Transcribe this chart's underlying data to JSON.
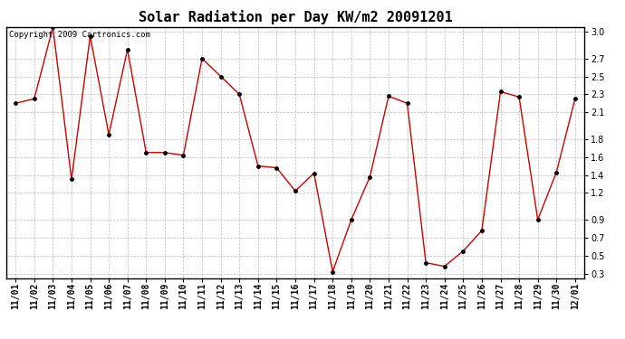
{
  "title": "Solar Radiation per Day KW/m2 20091201",
  "copyright_text": "Copyright 2009 Cartronics.com",
  "x_labels": [
    "11/01",
    "11/02",
    "11/03",
    "11/04",
    "11/05",
    "11/06",
    "11/07",
    "11/08",
    "11/09",
    "11/10",
    "11/11",
    "11/12",
    "11/13",
    "11/14",
    "11/15",
    "11/16",
    "11/17",
    "11/18",
    "11/19",
    "11/20",
    "11/21",
    "11/22",
    "11/23",
    "11/24",
    "11/25",
    "11/26",
    "11/27",
    "11/28",
    "11/29",
    "11/30",
    "12/01"
  ],
  "y_values": [
    2.2,
    2.25,
    3.05,
    1.35,
    2.95,
    1.85,
    2.8,
    1.65,
    1.65,
    1.62,
    2.7,
    2.5,
    2.3,
    1.5,
    1.48,
    1.22,
    1.42,
    0.32,
    0.9,
    1.38,
    2.28,
    2.2,
    0.42,
    0.38,
    0.55,
    0.78,
    2.33,
    2.27,
    0.9,
    1.43,
    2.25
  ],
  "line_color": "#cc0000",
  "marker_color": "#000000",
  "bg_color": "#ffffff",
  "grid_color": "#bbbbbb",
  "ylim": [
    0.25,
    3.05
  ],
  "yticks": [
    0.3,
    0.5,
    0.7,
    0.9,
    1.2,
    1.4,
    1.6,
    1.8,
    2.1,
    2.3,
    2.5,
    2.7,
    3.0
  ],
  "title_fontsize": 11,
  "label_fontsize": 7,
  "copyright_fontsize": 6.5
}
